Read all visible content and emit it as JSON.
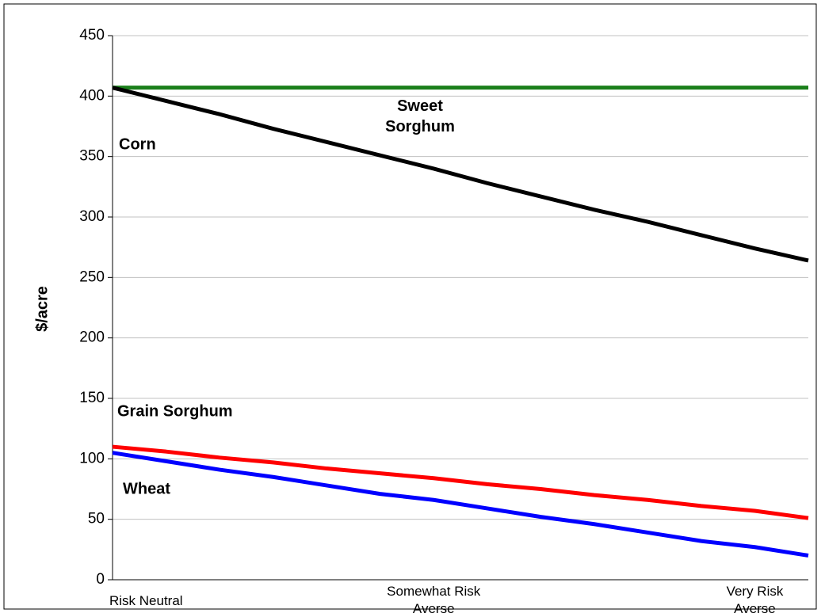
{
  "chart_data": {
    "type": "line",
    "ylabel": "$/acre",
    "categories": [
      "Risk Neutral",
      null,
      null,
      null,
      null,
      null,
      "Somewhat Risk\nAverse",
      null,
      null,
      null,
      null,
      null,
      "Very Risk\nAverse",
      null
    ],
    "series": [
      {
        "name": "Sweet\nSorghum",
        "color": "#1a7f1a",
        "values": [
          407,
          407,
          407,
          407,
          407,
          407,
          407,
          407,
          407,
          407,
          407,
          407,
          407,
          407
        ]
      },
      {
        "name": "Corn",
        "color": "#000000",
        "values": [
          407,
          396,
          385,
          373,
          362,
          351,
          340,
          328,
          317,
          306,
          296,
          285,
          274,
          264
        ]
      },
      {
        "name": "Grain Sorghum",
        "color": "#ff0000",
        "values": [
          110,
          106,
          101,
          97,
          92,
          88,
          84,
          79,
          75,
          70,
          66,
          61,
          57,
          51
        ]
      },
      {
        "name": "Wheat",
        "color": "#0000ff",
        "values": [
          105,
          98,
          91,
          85,
          78,
          71,
          66,
          59,
          52,
          46,
          39,
          32,
          27,
          20
        ]
      }
    ],
    "ylim": [
      0,
      450
    ],
    "yticks": [
      0,
      50,
      100,
      150,
      200,
      250,
      300,
      350,
      400,
      450
    ],
    "grid": true
  }
}
